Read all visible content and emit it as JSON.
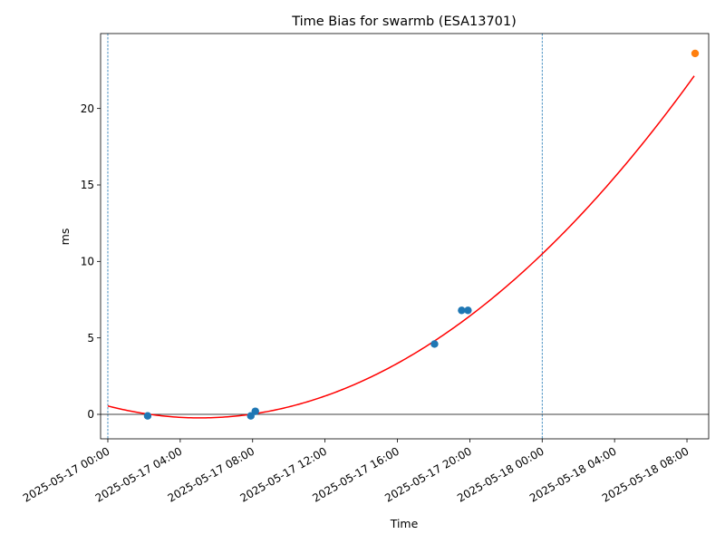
{
  "chart_data": {
    "type": "scatter",
    "title": "Time Bias for swarmb (ESA13701)",
    "xlabel": "Time",
    "ylabel": "ms",
    "x_ticks": [
      {
        "value": 0,
        "label": "2025-05-17 00:00"
      },
      {
        "value": 4,
        "label": "2025-05-17 04:00"
      },
      {
        "value": 8,
        "label": "2025-05-17 08:00"
      },
      {
        "value": 12,
        "label": "2025-05-17 12:00"
      },
      {
        "value": 16,
        "label": "2025-05-17 16:00"
      },
      {
        "value": 20,
        "label": "2025-05-17 20:00"
      },
      {
        "value": 24,
        "label": "2025-05-18 00:00"
      },
      {
        "value": 28,
        "label": "2025-05-18 04:00"
      },
      {
        "value": 32,
        "label": "2025-05-18 08:00"
      }
    ],
    "y_ticks": [
      {
        "value": 0,
        "label": "0"
      },
      {
        "value": 5,
        "label": "5"
      },
      {
        "value": 10,
        "label": "10"
      },
      {
        "value": 15,
        "label": "15"
      },
      {
        "value": 20,
        "label": "20"
      }
    ],
    "xlim": [
      -0.4,
      33.2
    ],
    "ylim": [
      -1.6,
      24.9
    ],
    "series": [
      {
        "type": "scatter",
        "color": "#1f77b4",
        "points": [
          {
            "x": 2.2,
            "y": -0.1
          },
          {
            "x": 7.9,
            "y": -0.1
          },
          {
            "x": 8.15,
            "y": 0.2
          },
          {
            "x": 18.05,
            "y": 4.6
          },
          {
            "x": 19.55,
            "y": 6.8
          },
          {
            "x": 19.9,
            "y": 6.8
          }
        ]
      },
      {
        "type": "scatter",
        "color": "#ff7f0e",
        "points": [
          {
            "x": 32.45,
            "y": 23.6
          }
        ]
      },
      {
        "type": "fit-curve",
        "color": "#ff0000",
        "model": "quadratic",
        "coefficients": {
          "a": 0.03,
          "b": -0.306,
          "c": 0.55
        },
        "x_range": [
          0,
          32.4
        ]
      }
    ],
    "vertical_lines": [
      0,
      24
    ],
    "hline": 0,
    "colors": {
      "vline": "#1f77b4",
      "hline": "#000000"
    }
  }
}
